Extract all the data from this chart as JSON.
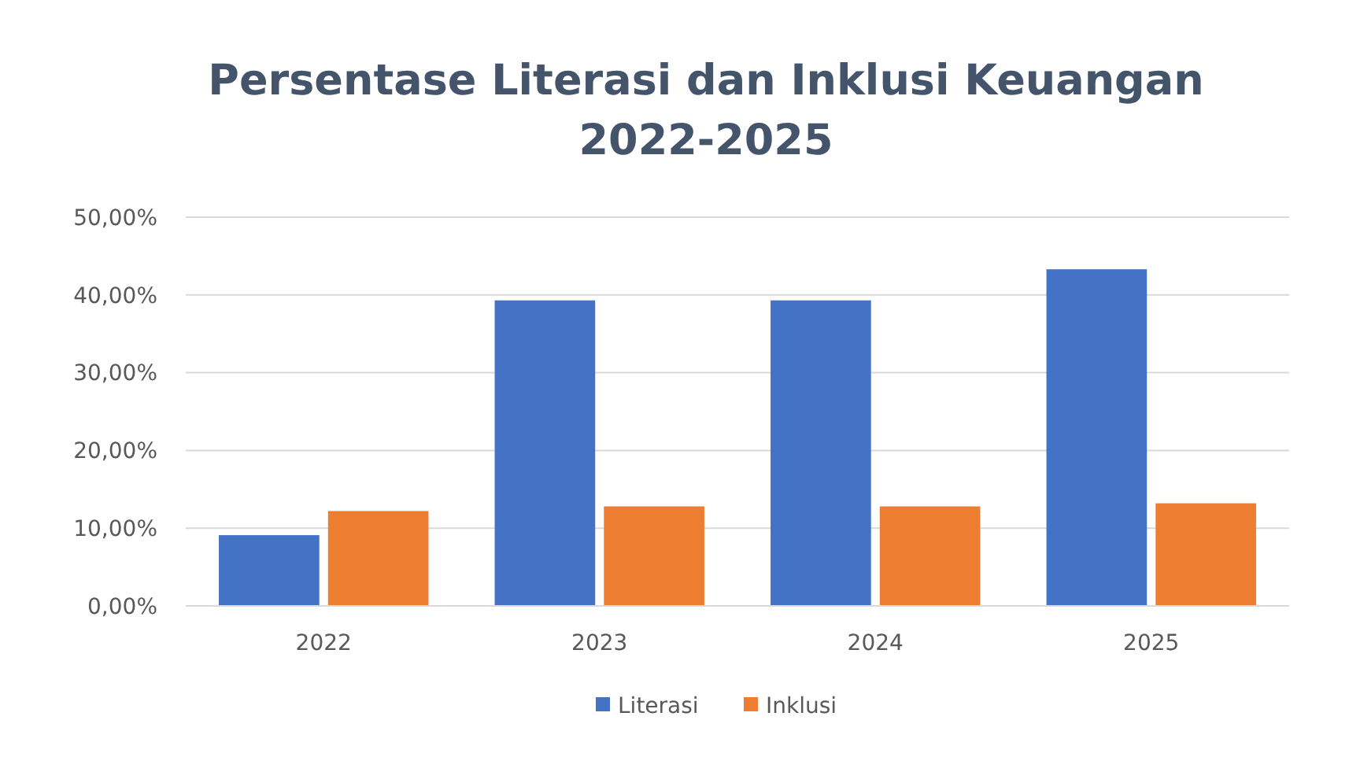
{
  "chart_data": {
    "type": "bar",
    "title": "Persentase Literasi dan Inklusi Keuangan\n2022-2025",
    "categories": [
      "2022",
      "2023",
      "2024",
      "2025"
    ],
    "series": [
      {
        "name": "Literasi",
        "color": "#4472c4",
        "values": [
          9.1,
          39.3,
          39.3,
          43.3
        ]
      },
      {
        "name": "Inklusi",
        "color": "#ed7d31",
        "values": [
          12.2,
          12.8,
          12.8,
          13.2
        ]
      }
    ],
    "ylim": [
      0,
      50
    ],
    "yticks": [
      {
        "value": 0,
        "label": "0,00%"
      },
      {
        "value": 10,
        "label": "10,00%"
      },
      {
        "value": 20,
        "label": "20,00%"
      },
      {
        "value": 30,
        "label": "30,00%"
      },
      {
        "value": 40,
        "label": "40,00%"
      },
      {
        "value": 50,
        "label": "50,00%"
      }
    ],
    "grid": "y",
    "legend": "bottom"
  }
}
